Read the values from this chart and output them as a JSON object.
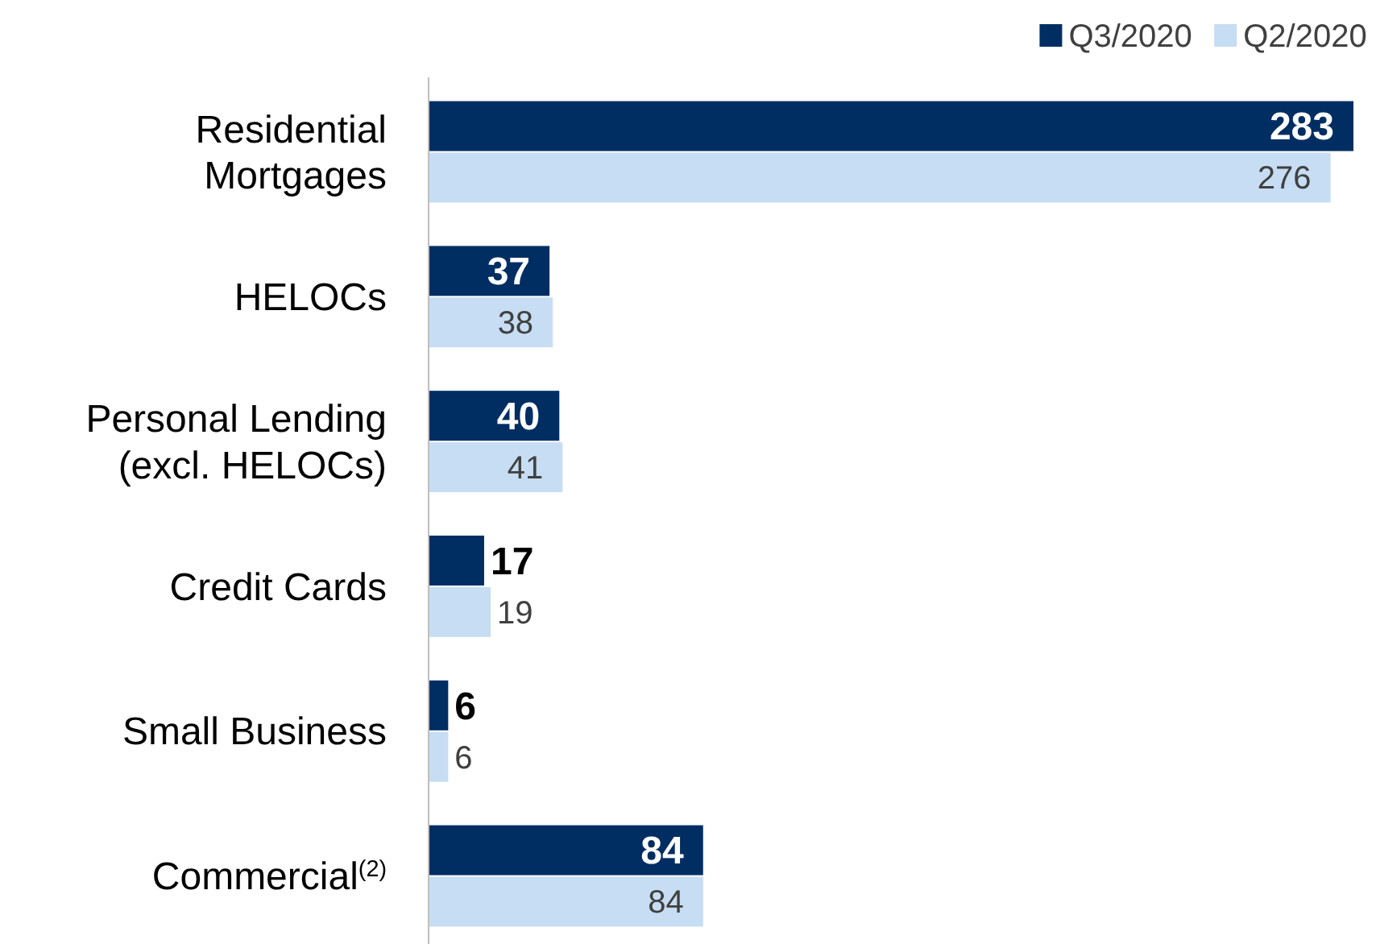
{
  "chart_data": {
    "type": "bar",
    "orientation": "horizontal",
    "categories": [
      "Residential Mortgages",
      "HELOCs",
      "Personal Lending (excl. HELOCs)",
      "Credit Cards",
      "Small Business",
      "Commercial$^{(2)}$"
    ],
    "series": [
      {
        "name": "Q3/2020",
        "color": "#002e63",
        "values": [
          283,
          37,
          40,
          17,
          6,
          84
        ]
      },
      {
        "name": "Q2/2020",
        "color": "#c6ddf3",
        "values": [
          276,
          38,
          41,
          19,
          6,
          84
        ]
      }
    ],
    "data_labels": true,
    "legend": "top right"
  }
}
